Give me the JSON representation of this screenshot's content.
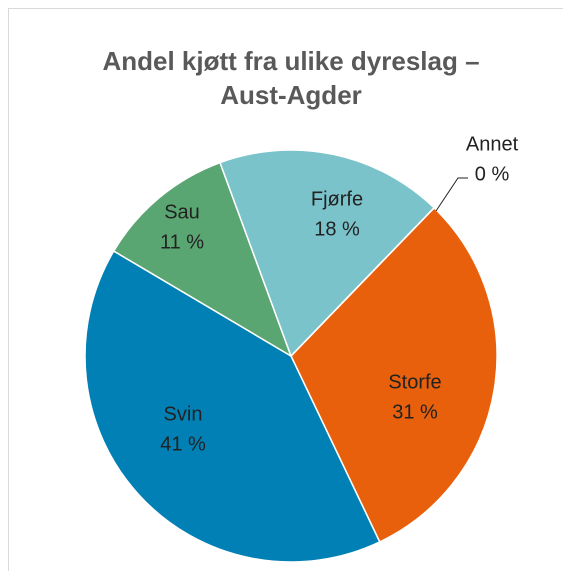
{
  "chart_data": {
    "type": "pie",
    "title": "Andel kjøtt fra ulike dyreslag – Aust-Agder",
    "categories": [
      "Storfe",
      "Svin",
      "Sau",
      "Fjørfe",
      "Annet"
    ],
    "values": [
      31,
      41,
      11,
      18,
      0
    ],
    "value_labels": [
      "31 %",
      "41 %",
      "11 %",
      "18 %",
      "0 %"
    ],
    "colors": [
      "#e8600c",
      "#0080b4",
      "#5aa672",
      "#7bc3cb",
      "#f0a030"
    ]
  }
}
